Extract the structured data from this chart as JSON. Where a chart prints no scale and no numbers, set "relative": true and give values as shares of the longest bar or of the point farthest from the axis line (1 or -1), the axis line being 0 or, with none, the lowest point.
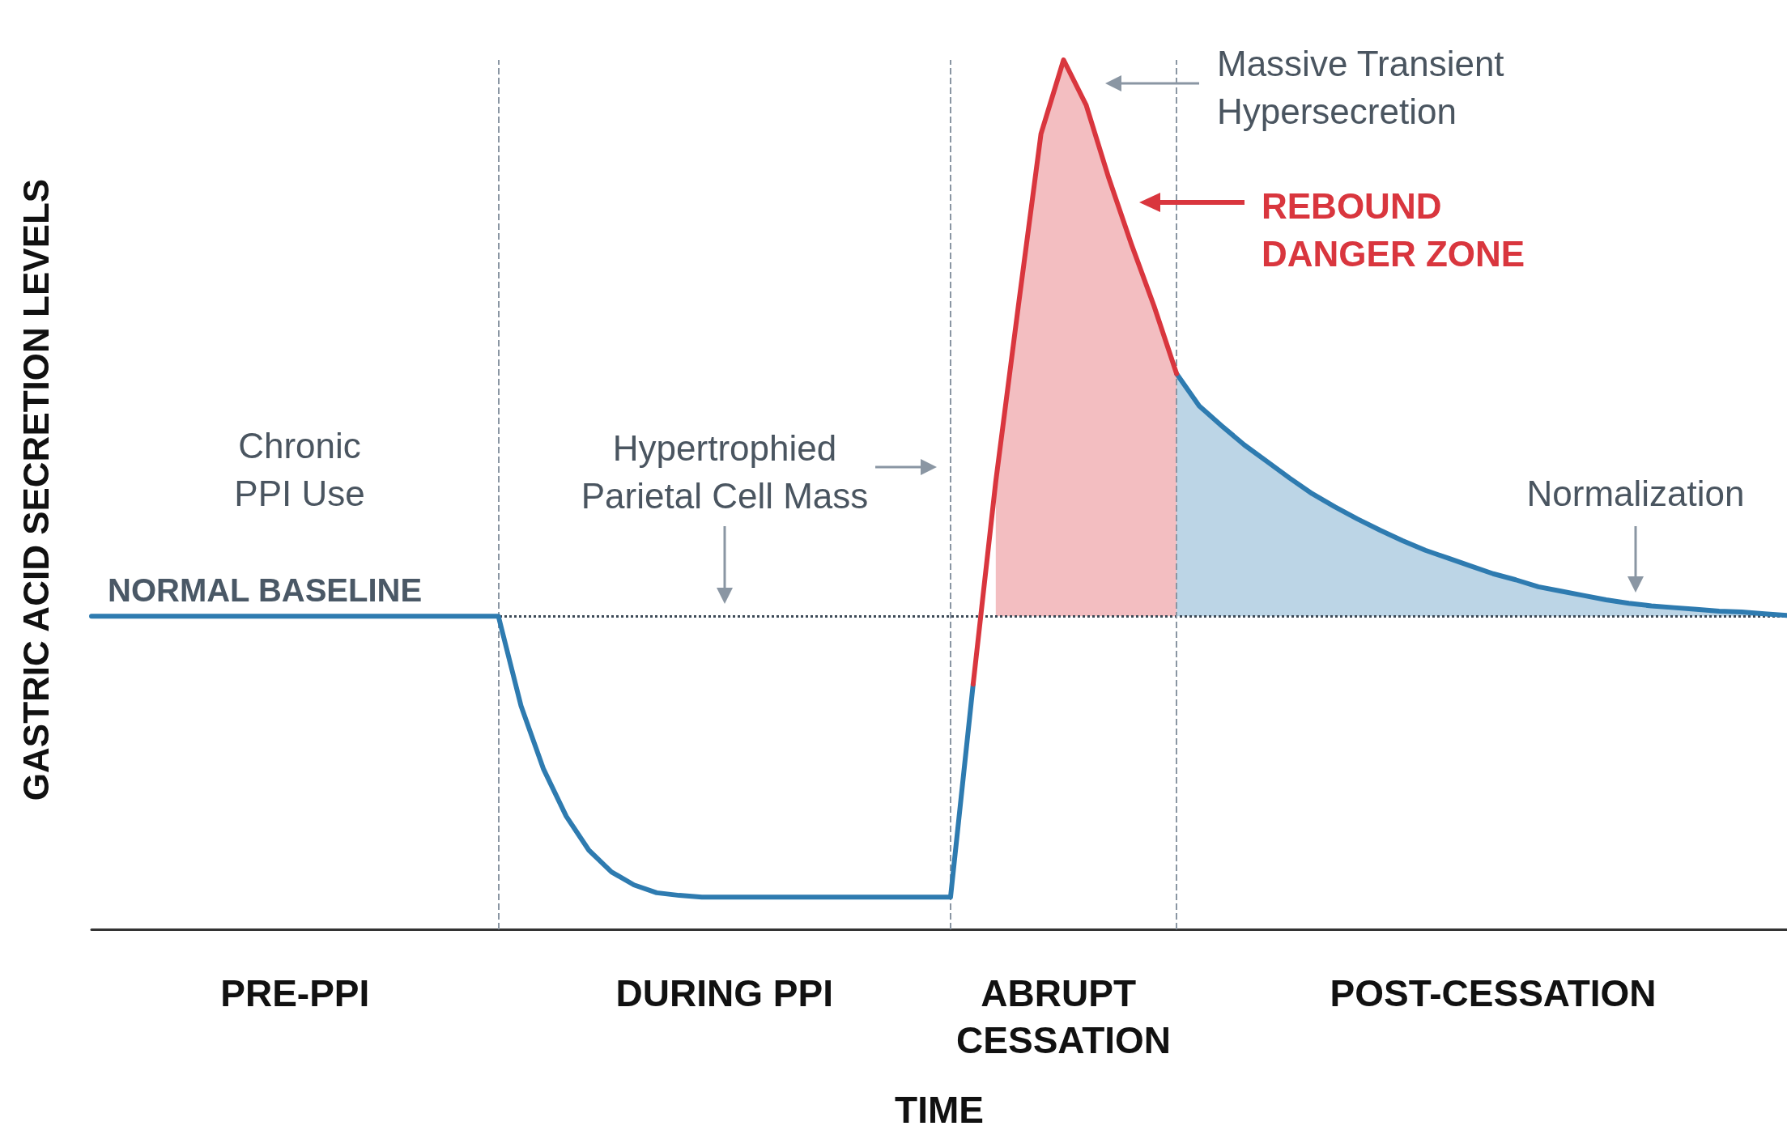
{
  "chart_data": {
    "type": "line",
    "xlabel": "TIME",
    "ylabel": "GASTRIC ACID SECRETION LEVELS",
    "relative": true,
    "categories": [
      null,
      null,
      null,
      null,
      null,
      null,
      null,
      null,
      null,
      "PRE-PPI",
      null,
      null,
      null,
      null,
      null,
      null,
      null,
      null,
      null,
      null,
      null,
      null,
      null,
      null,
      null,
      null,
      null,
      null,
      "DURING PPI",
      null,
      null,
      null,
      null,
      null,
      null,
      null,
      null,
      null,
      null,
      null,
      null,
      null,
      null,
      "ABRUPT CESSATION",
      null,
      null,
      null,
      null,
      null,
      null,
      null,
      null,
      null,
      null,
      null,
      null,
      null,
      null,
      null,
      null,
      null,
      null,
      "POST-CESSATION",
      null,
      null,
      null,
      null,
      null,
      null,
      null,
      null,
      null,
      null,
      null,
      null,
      null
    ],
    "marker": "none",
    "line_style": "solid",
    "series": [
      {
        "color": "#2e7bb0",
        "values": [
          0.36,
          0.36,
          0.36,
          0.36,
          0.36,
          0.36,
          0.36,
          0.36,
          0.36,
          0.36,
          0.36,
          0.36,
          0.36,
          0.36,
          0.36,
          0.36,
          0.36,
          0.36,
          0.36,
          0.257,
          0.184,
          0.13,
          0.091,
          0.066,
          0.051,
          0.042,
          0.039,
          0.037,
          0.037,
          0.037,
          0.037,
          0.037,
          0.037,
          0.037,
          0.037,
          0.037,
          0.037,
          0.037,
          0.037,
          0.282,
          null,
          null,
          null,
          null,
          null,
          null,
          null,
          null,
          0.639,
          0.602,
          0.579,
          0.557,
          0.538,
          0.519,
          0.501,
          0.486,
          0.472,
          0.459,
          0.447,
          0.436,
          0.427,
          0.418,
          0.409,
          0.402,
          0.394,
          0.389,
          0.384,
          0.379,
          0.375,
          0.372,
          0.37,
          0.368,
          0.366,
          0.365,
          0.363,
          0.361
        ],
        "lower": [
          null,
          null,
          null,
          null,
          null,
          null,
          null,
          null,
          null,
          null,
          null,
          null,
          null,
          null,
          null,
          null,
          null,
          null,
          null,
          null,
          null,
          null,
          null,
          null,
          null,
          null,
          null,
          null,
          null,
          null,
          null,
          null,
          null,
          null,
          null,
          null,
          null,
          null,
          null,
          null,
          null,
          null,
          null,
          null,
          null,
          null,
          null,
          null,
          0.36,
          0.36,
          0.36,
          0.36,
          0.36,
          0.36,
          0.36,
          0.36,
          0.36,
          0.36,
          0.36,
          0.36,
          0.36,
          0.36,
          0.36,
          0.36,
          0.36,
          0.36,
          0.36,
          0.36,
          0.36,
          0.36,
          0.36,
          0.36,
          0.36,
          0.36,
          0.36,
          0.36
        ],
        "upper": [
          null,
          null,
          null,
          null,
          null,
          null,
          null,
          null,
          null,
          null,
          null,
          null,
          null,
          null,
          null,
          null,
          null,
          null,
          null,
          null,
          null,
          null,
          null,
          null,
          null,
          null,
          null,
          null,
          null,
          null,
          null,
          null,
          null,
          null,
          null,
          null,
          null,
          null,
          null,
          null,
          null,
          null,
          null,
          null,
          null,
          null,
          null,
          null,
          0.639,
          0.602,
          0.579,
          0.557,
          0.538,
          0.519,
          0.501,
          0.486,
          0.472,
          0.459,
          0.447,
          0.436,
          0.427,
          0.418,
          0.409,
          0.402,
          0.394,
          0.389,
          0.384,
          0.379,
          0.375,
          0.372,
          0.37,
          0.368,
          0.366,
          0.365,
          0.363,
          0.361
        ]
      },
      {
        "color": "#d9363e",
        "values": [
          null,
          null,
          null,
          null,
          null,
          null,
          null,
          null,
          null,
          null,
          null,
          null,
          null,
          null,
          null,
          null,
          null,
          null,
          null,
          null,
          null,
          null,
          null,
          null,
          null,
          null,
          null,
          null,
          null,
          null,
          null,
          null,
          null,
          null,
          null,
          null,
          null,
          null,
          null,
          0.282,
          0.515,
          0.717,
          0.915,
          1,
          0.948,
          0.864,
          0.788,
          0.717,
          0.639,
          null,
          null,
          null,
          null,
          null,
          null,
          null,
          null,
          null,
          null,
          null,
          null,
          null,
          null,
          null,
          null,
          null,
          null,
          null,
          null,
          null,
          null,
          null,
          null,
          null,
          null,
          null
        ],
        "lower": [
          null,
          null,
          null,
          null,
          null,
          null,
          null,
          null,
          null,
          null,
          null,
          null,
          null,
          null,
          null,
          null,
          null,
          null,
          null,
          null,
          null,
          null,
          null,
          null,
          null,
          null,
          null,
          null,
          null,
          null,
          null,
          null,
          null,
          null,
          null,
          null,
          null,
          null,
          null,
          null,
          0.36,
          0.36,
          0.36,
          0.36,
          0.36,
          0.36,
          0.36,
          0.36,
          0.36,
          null,
          null,
          null,
          null,
          null,
          null,
          null,
          null,
          null,
          null,
          null,
          null,
          null,
          null,
          null,
          null,
          null,
          null,
          null,
          null,
          null,
          null,
          null,
          null,
          null,
          null,
          null
        ],
        "upper": [
          null,
          null,
          null,
          null,
          null,
          null,
          null,
          null,
          null,
          null,
          null,
          null,
          null,
          null,
          null,
          null,
          null,
          null,
          null,
          null,
          null,
          null,
          null,
          null,
          null,
          null,
          null,
          null,
          null,
          null,
          null,
          null,
          null,
          null,
          null,
          null,
          null,
          null,
          null,
          null,
          0.515,
          0.717,
          0.915,
          1,
          0.948,
          0.864,
          0.788,
          0.717,
          0.639,
          null,
          null,
          null,
          null,
          null,
          null,
          null,
          null,
          null,
          null,
          null,
          null,
          null,
          null,
          null,
          null,
          null,
          null,
          null,
          null,
          null,
          null,
          null,
          null,
          null,
          null,
          null
        ]
      }
    ],
    "ref_lines": [
      {
        "axis": "y",
        "value": 0.36,
        "label": "NORMAL BASELINE",
        "line_style": "dotted",
        "color": "#3d4a57"
      }
    ],
    "annotations": [
      "Chronic PPI Use",
      "Massive Transient Hypersecretion",
      "REBOUND DANGER ZONE",
      "Hypertrophied Parietal Cell Mass",
      "Normalization"
    ]
  }
}
